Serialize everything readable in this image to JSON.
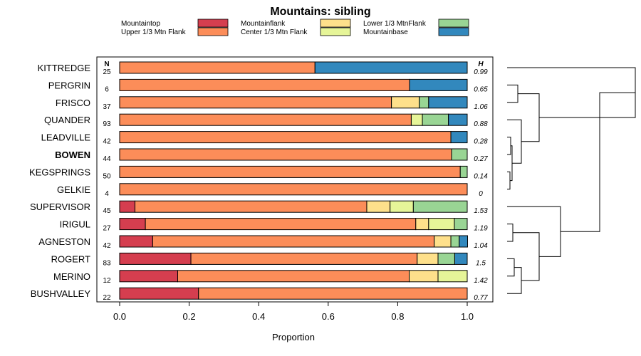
{
  "chart_data": {
    "type": "bar",
    "subtype": "stacked-horizontal-proportion",
    "title": "Mountains: sibling",
    "xlabel": "Proportion",
    "xlim": [
      0,
      1
    ],
    "xticks": [
      "0.0",
      "0.2",
      "0.4",
      "0.6",
      "0.8",
      "1.0"
    ],
    "n_header": "N",
    "h_header": "H",
    "highlight": "BOWEN",
    "series": [
      {
        "name": "Mountaintop",
        "color": "#d53e4f"
      },
      {
        "name": "Upper 1/3 Mtn Flank",
        "color": "#fc8d59"
      },
      {
        "name": "Mountainflank",
        "color": "#fee08b"
      },
      {
        "name": "Center 1/3 Mtn Flank",
        "color": "#e6f598"
      },
      {
        "name": "Lower 1/3 MtnFlank",
        "color": "#99d594"
      },
      {
        "name": "Mountainbase",
        "color": "#3288bd"
      }
    ],
    "rows": [
      {
        "name": "KITTREDGE",
        "n": "25",
        "h": "0.99",
        "values": [
          0,
          0.562,
          0,
          0,
          0,
          0.438
        ]
      },
      {
        "name": "PERGRIN",
        "n": "6",
        "h": "0.65",
        "values": [
          0,
          0.834,
          0,
          0,
          0,
          0.166
        ]
      },
      {
        "name": "FRISCO",
        "n": "37",
        "h": "1.06",
        "values": [
          0,
          0.782,
          0.08,
          0,
          0.027,
          0.111
        ]
      },
      {
        "name": "QUANDER",
        "n": "93",
        "h": "0.88",
        "values": [
          0,
          0.839,
          0,
          0.032,
          0.075,
          0.054
        ]
      },
      {
        "name": "LEADVILLE",
        "n": "42",
        "h": "0.28",
        "values": [
          0,
          0.953,
          0,
          0,
          0,
          0.047
        ]
      },
      {
        "name": "BOWEN",
        "n": "44",
        "h": "0.27",
        "values": [
          0,
          0.955,
          0,
          0,
          0.045,
          0
        ]
      },
      {
        "name": "KEGSPRINGS",
        "n": "50",
        "h": "0.14",
        "values": [
          0,
          0.98,
          0,
          0,
          0.02,
          0
        ]
      },
      {
        "name": "GELKIE",
        "n": "4",
        "h": "0",
        "values": [
          0,
          1.0,
          0,
          0,
          0,
          0
        ]
      },
      {
        "name": "SUPERVISOR",
        "n": "45",
        "h": "1.53",
        "values": [
          0.044,
          0.667,
          0.067,
          0.067,
          0.155,
          0
        ]
      },
      {
        "name": "IRIGUL",
        "n": "27",
        "h": "1.19",
        "values": [
          0.074,
          0.778,
          0.037,
          0.074,
          0.037,
          0
        ]
      },
      {
        "name": "AGNESTON",
        "n": "42",
        "h": "1.04",
        "values": [
          0.095,
          0.81,
          0.048,
          0,
          0.024,
          0.024
        ]
      },
      {
        "name": "ROGERT",
        "n": "83",
        "h": "1.5",
        "values": [
          0.205,
          0.651,
          0.06,
          0,
          0.048,
          0.036
        ]
      },
      {
        "name": "MERINO",
        "n": "12",
        "h": "1.42",
        "values": [
          0.167,
          0.666,
          0.083,
          0.084,
          0,
          0
        ]
      },
      {
        "name": "BUSHVALLEY",
        "n": "22",
        "h": "0.77",
        "values": [
          0.227,
          0.773,
          0,
          0,
          0,
          0
        ]
      }
    ],
    "dendrogram": [
      {
        "a": "PERGRIN",
        "b": "FRISCO",
        "height": 0.015
      },
      {
        "a": "LEADVILLE",
        "b": "BOWEN",
        "height": 0.005
      },
      {
        "a": "KEGSPRINGS",
        "b": "GELKIE",
        "height": 0.004
      },
      {
        "a": "C2",
        "b": "C3",
        "height": 0.007
      },
      {
        "a": "QUANDER",
        "b": "C4",
        "height": 0.02
      },
      {
        "a": "C1",
        "b": "C5",
        "height": 0.045
      },
      {
        "a": "KITTREDGE",
        "b": "C6",
        "height": 0.18
      },
      {
        "a": "IRIGUL",
        "b": "AGNESTON",
        "height": 0.008
      },
      {
        "a": "ROGERT",
        "b": "MERINO",
        "height": 0.01
      },
      {
        "a": "C9",
        "b": "BUSHVALLEY",
        "height": 0.02
      },
      {
        "a": "C8",
        "b": "C10",
        "height": 0.045
      },
      {
        "a": "SUPERVISOR",
        "b": "C11",
        "height": 0.075
      },
      {
        "a": "C7",
        "b": "C12",
        "height": 0.13
      }
    ]
  }
}
